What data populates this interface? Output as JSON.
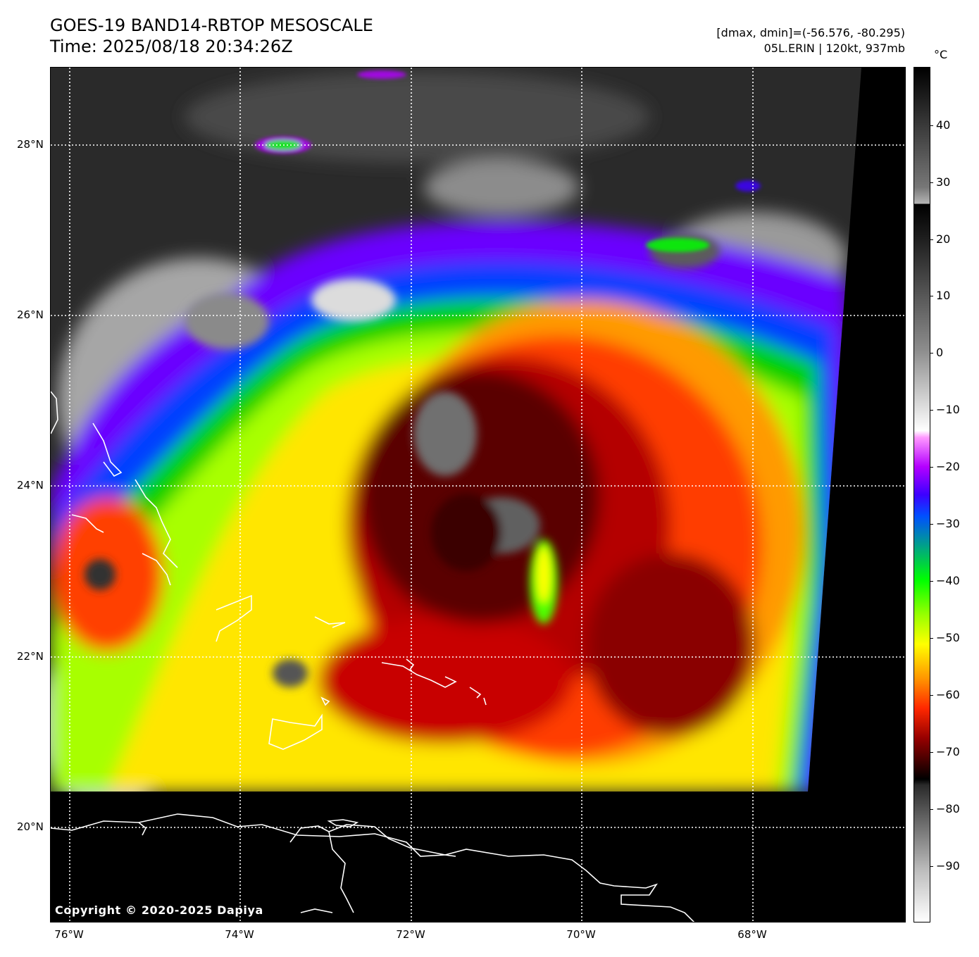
{
  "header": {
    "title_line1": "GOES-19 BAND14-RBTOP MESOSCALE",
    "title_line2": "Time: 2025/08/18 20:34:26Z",
    "info_line1": "[dmax, dmin]=(-56.576, -80.295)",
    "info_line2": "05L.ERIN | 120kt, 937mb"
  },
  "map": {
    "lat_labels": [
      "28°N",
      "26°N",
      "24°N",
      "22°N",
      "20°N"
    ],
    "lon_labels": [
      "76°W",
      "74°W",
      "72°W",
      "70°W",
      "68°W"
    ],
    "copyright": "Copyright © 2020-2025 Dapiya"
  },
  "colorbar": {
    "unit": "°C",
    "ticks": [
      "40",
      "30",
      "20",
      "10",
      "0",
      "−10",
      "−20",
      "−30",
      "−40",
      "−50",
      "−60",
      "−70",
      "−80",
      "−90"
    ]
  },
  "colors": {
    "background": "#000000",
    "gridline": "#ffffff",
    "coastline": "#ffffff"
  }
}
